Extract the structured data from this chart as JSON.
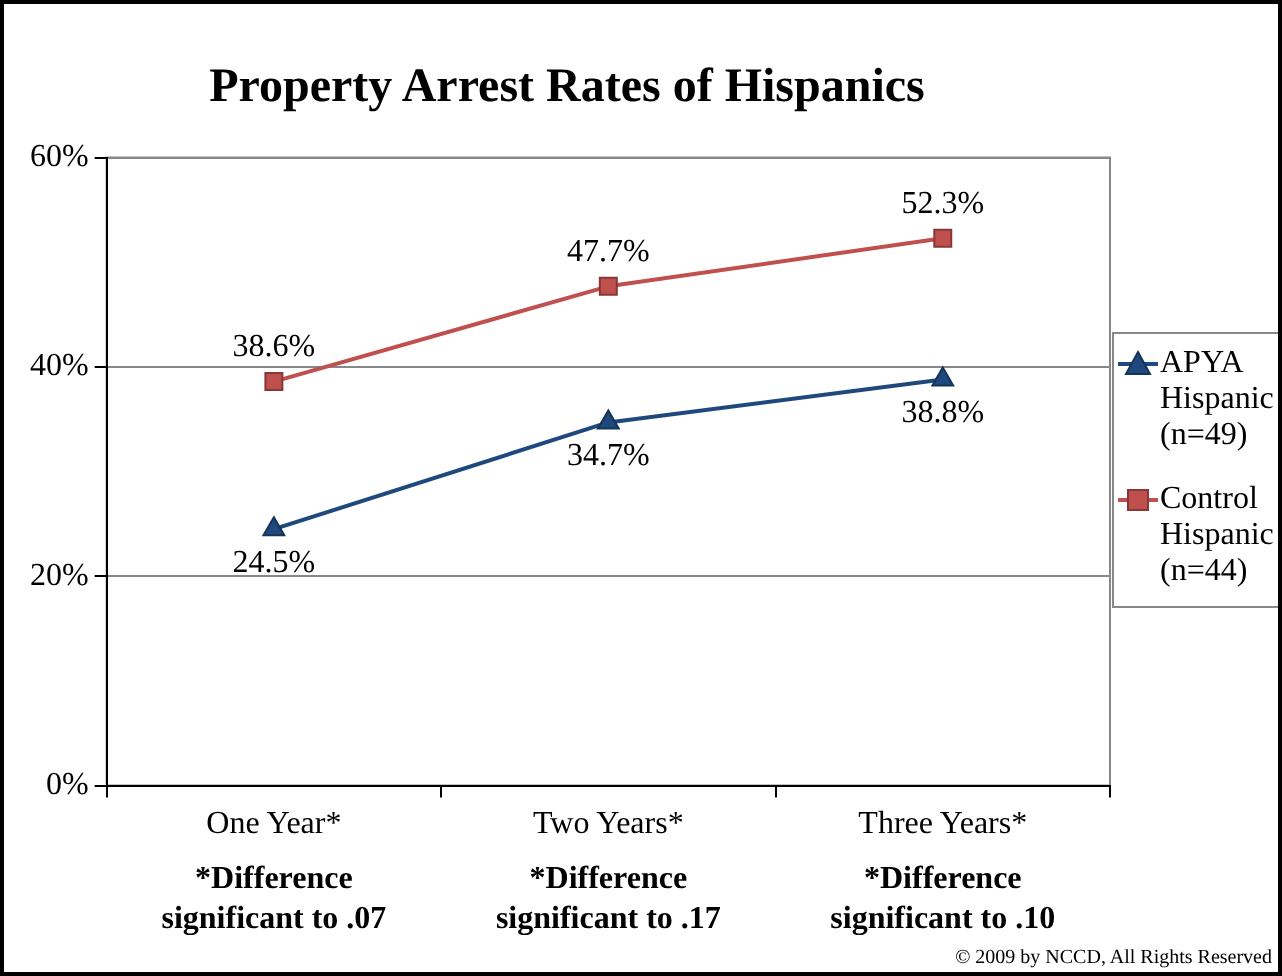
{
  "chart_data": {
    "type": "line",
    "title": "Property Arrest Rates of Hispanics",
    "categories": [
      "One Year*",
      "Two Years*",
      "Three Years*"
    ],
    "series": [
      {
        "name": "APYA Hispanic (n=49)",
        "color": "#1f497d",
        "marker": "triangle",
        "values": [
          24.5,
          34.7,
          38.8
        ],
        "value_labels": [
          "24.5%",
          "34.7%",
          "38.8%"
        ]
      },
      {
        "name": "Control Hispanic (n=44)",
        "color": "#c0504d",
        "marker": "square",
        "values": [
          38.6,
          47.7,
          52.3
        ],
        "value_labels": [
          "38.6%",
          "47.7%",
          "52.3%"
        ]
      }
    ],
    "ylim": [
      0,
      60
    ],
    "yticks": [
      {
        "value": 0,
        "label": "0%"
      },
      {
        "value": 20,
        "label": "20%"
      },
      {
        "value": 40,
        "label": "40%"
      },
      {
        "value": 60,
        "label": "60%"
      }
    ],
    "grid": "y",
    "legend": "right",
    "line_style": "solid",
    "annotations": [
      "*Difference significant to .07",
      "*Difference significant to .17",
      "*Difference significant to .10",
      "© 2009 by NCCD, All Rights Reserved"
    ]
  }
}
